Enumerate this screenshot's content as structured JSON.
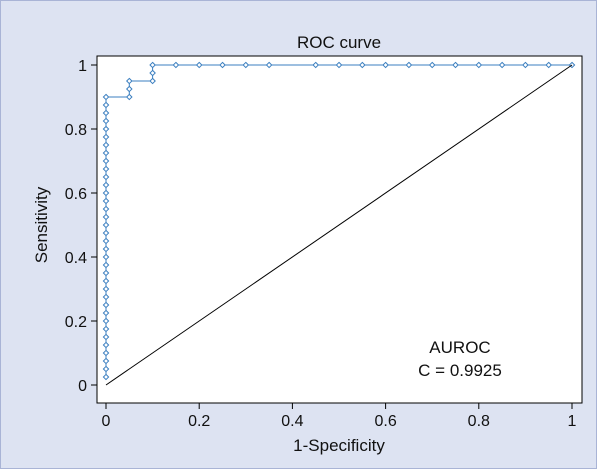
{
  "chart_data": {
    "type": "line",
    "title": "ROC curve",
    "xlabel": "1-Specificity",
    "ylabel": "Sensitivity",
    "xlim": [
      0,
      1
    ],
    "ylim": [
      0,
      1
    ],
    "xticks": [
      "0",
      "0.2",
      "0.4",
      "0.6",
      "0.8",
      "1"
    ],
    "yticks": [
      "0",
      "0.2",
      "0.4",
      "0.6",
      "0.8",
      "1"
    ],
    "grid": false,
    "series": [
      {
        "color": "#3b7fc0",
        "marker": "diamond",
        "points": [
          [
            0,
            0.025
          ],
          [
            0,
            0.05
          ],
          [
            0,
            0.075
          ],
          [
            0,
            0.1
          ],
          [
            0,
            0.125
          ],
          [
            0,
            0.15
          ],
          [
            0,
            0.175
          ],
          [
            0,
            0.2
          ],
          [
            0,
            0.225
          ],
          [
            0,
            0.25
          ],
          [
            0,
            0.275
          ],
          [
            0,
            0.3
          ],
          [
            0,
            0.325
          ],
          [
            0,
            0.35
          ],
          [
            0,
            0.375
          ],
          [
            0,
            0.4
          ],
          [
            0,
            0.425
          ],
          [
            0,
            0.45
          ],
          [
            0,
            0.475
          ],
          [
            0,
            0.5
          ],
          [
            0,
            0.525
          ],
          [
            0,
            0.55
          ],
          [
            0,
            0.575
          ],
          [
            0,
            0.6
          ],
          [
            0,
            0.625
          ],
          [
            0,
            0.65
          ],
          [
            0,
            0.675
          ],
          [
            0,
            0.7
          ],
          [
            0,
            0.725
          ],
          [
            0,
            0.75
          ],
          [
            0,
            0.775
          ],
          [
            0,
            0.8
          ],
          [
            0,
            0.825
          ],
          [
            0,
            0.85
          ],
          [
            0,
            0.875
          ],
          [
            0,
            0.9
          ],
          [
            0.05,
            0.9
          ],
          [
            0.05,
            0.925
          ],
          [
            0.05,
            0.95
          ],
          [
            0.1,
            0.95
          ],
          [
            0.1,
            0.975
          ],
          [
            0.1,
            1.0
          ],
          [
            0.15,
            1
          ],
          [
            0.2,
            1
          ],
          [
            0.25,
            1
          ],
          [
            0.3,
            1
          ],
          [
            0.35,
            1
          ],
          [
            0.45,
            1
          ],
          [
            0.5,
            1
          ],
          [
            0.55,
            1
          ],
          [
            0.6,
            1
          ],
          [
            0.65,
            1
          ],
          [
            0.7,
            1
          ],
          [
            0.75,
            1
          ],
          [
            0.8,
            1
          ],
          [
            0.85,
            1
          ],
          [
            0.9,
            1
          ],
          [
            0.95,
            1
          ],
          [
            1,
            1
          ]
        ]
      },
      {
        "color": "#000000",
        "marker": "none",
        "points": [
          [
            0,
            0
          ],
          [
            1,
            1
          ]
        ]
      }
    ],
    "annotations": [
      "AUROC",
      "C = 0.9925"
    ]
  }
}
